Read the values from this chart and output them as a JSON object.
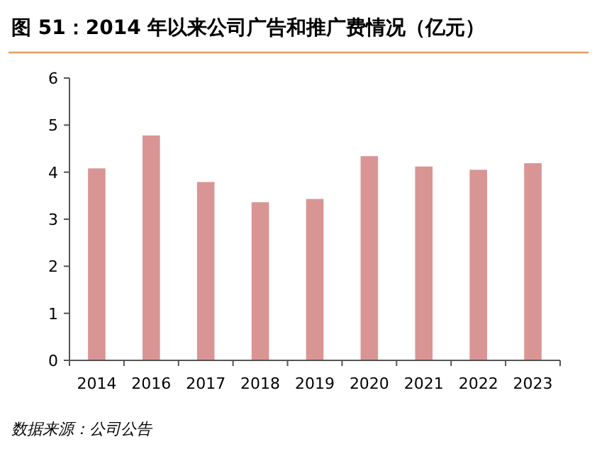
{
  "chart_data": {
    "type": "bar",
    "title": "图 51：2014 年以来公司广告和推广费情况（亿元）",
    "categories": [
      "2014",
      "2016",
      "2017",
      "2018",
      "2019",
      "2020",
      "2021",
      "2022",
      "2023"
    ],
    "values": [
      4.08,
      4.78,
      3.79,
      3.36,
      3.43,
      4.34,
      4.12,
      4.05,
      4.19
    ],
    "color": "#d99594",
    "ylim": [
      0,
      6
    ],
    "yticks": [
      0,
      1,
      2,
      3,
      4,
      5,
      6
    ],
    "grid": false,
    "annotations": [
      "数据来源：公司公告"
    ]
  }
}
